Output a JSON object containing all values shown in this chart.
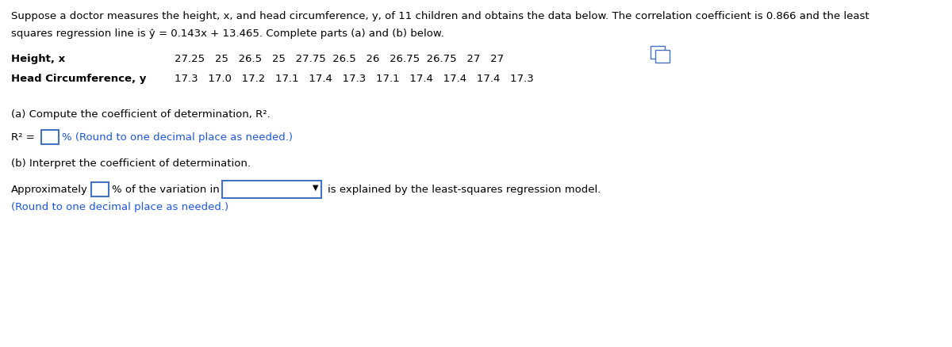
{
  "intro_line1": "Suppose a doctor measures the height, x, and head circumference, y, of 11 children and obtains the data below. The correlation coefficient is 0.866 and the least",
  "intro_line2": "squares regression line is ŷ = 0.143x + 13.465. Complete parts (a) and (b) below.",
  "height_label": "Height, x",
  "height_values": "27.25   25   26.5   25   27.75  26.5   26   26.75  26.75   27   27",
  "circ_label": "Head Circumference, y",
  "circ_values": "17.3   17.0   17.2   17.1   17.4   17.3   17.1   17.4   17.4   17.4   17.3",
  "part_a_label": "(a) Compute the coefficient of determination, R².",
  "r2_prefix": "R² = ",
  "r2_note": "% (Round to one decimal place as needed.)",
  "part_b_label": "(b) Interpret the coefficient of determination.",
  "approx_prefix": "Approximately",
  "approx_pct": "% of the variation in",
  "approx_end": "is explained by the least-squares regression model.",
  "round_note": "(Round to one decimal place as needed.)",
  "text_color": "#000000",
  "blue_color": "#1a56db",
  "box_border_color": "#4472C4",
  "bg_color": "#FFFFFF",
  "line_color": "#CCCCCC",
  "font_size_intro": 9.5,
  "font_size_table": 9.5,
  "font_size_body": 9.5
}
